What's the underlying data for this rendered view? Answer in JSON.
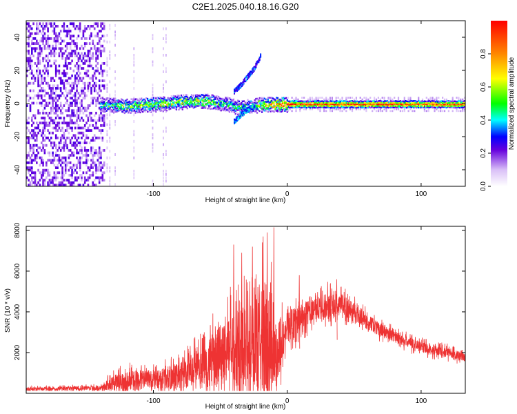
{
  "figure_title": "C2E1.2025.040.18.16.G20",
  "chart_data": [
    {
      "type": "heatmap",
      "title": "C2E1.2025.040.18.16.G20",
      "xlabel": "Height of straight line (km)",
      "ylabel": "Frequency (Hz)",
      "xlim": [
        -195,
        133
      ],
      "ylim": [
        -50,
        50
      ],
      "x_ticks": [
        -100,
        0,
        100
      ],
      "x_tick_labels": [
        "-100",
        "0",
        "100"
      ],
      "y_ticks": [
        -40,
        -20,
        0,
        20,
        40
      ],
      "y_tick_labels": [
        "-40",
        "-20",
        "0",
        "20",
        "40"
      ],
      "grid": false,
      "colorbar": {
        "label": "Normalized spectral amplitude",
        "range": [
          0,
          1
        ],
        "ticks": [
          0.0,
          0.2,
          0.4,
          0.6,
          0.8
        ],
        "tick_labels": [
          "0.0",
          "0.2",
          "0.4",
          "0.6",
          "0.8"
        ],
        "stops": [
          {
            "v": 0.0,
            "color": "#ffffff"
          },
          {
            "v": 0.1,
            "color": "#d9bff7"
          },
          {
            "v": 0.22,
            "color": "#6600dd"
          },
          {
            "v": 0.3,
            "color": "#0000ff"
          },
          {
            "v": 0.4,
            "color": "#00ffff"
          },
          {
            "v": 0.5,
            "color": "#00ff00"
          },
          {
            "v": 0.65,
            "color": "#ffff00"
          },
          {
            "v": 0.8,
            "color": "#ff8800"
          },
          {
            "v": 1.0,
            "color": "#ff0000"
          }
        ]
      },
      "features": [
        {
          "name": "noise region",
          "x_range": [
            -195,
            -137
          ],
          "f_range": [
            -50,
            50
          ],
          "amplitude": 0.2
        },
        {
          "name": "main trace",
          "points": [
            [
              -140,
              0
            ],
            [
              -120,
              -1
            ],
            [
              -100,
              0
            ],
            [
              -80,
              1.5
            ],
            [
              -60,
              2
            ],
            [
              -45,
              0
            ],
            [
              -35,
              -2
            ],
            [
              -20,
              0
            ],
            [
              -10,
              0
            ],
            [
              0,
              0
            ],
            [
              130,
              0
            ]
          ],
          "amplitude": [
            0.45,
            0.55,
            0.6,
            0.65,
            0.6,
            0.5,
            0.45,
            0.6,
            0.8,
            0.9,
            0.85
          ]
        },
        {
          "name": "rising branch",
          "points": [
            [
              -40,
              8
            ],
            [
              -35,
              12
            ],
            [
              -30,
              17
            ],
            [
              -25,
              22
            ],
            [
              -20,
              30
            ]
          ],
          "amplitude": 0.3
        },
        {
          "name": "descending branch",
          "points": [
            [
              -40,
              -10
            ],
            [
              -35,
              -6
            ],
            [
              -30,
              -3
            ],
            [
              -25,
              -1
            ]
          ],
          "amplitude": 0.35
        }
      ]
    },
    {
      "type": "line",
      "xlabel": "Height of straight line (km)",
      "ylabel": "SNR (10 * v/v)",
      "xlim": [
        -195,
        133
      ],
      "ylim": [
        0,
        8200
      ],
      "x_ticks": [
        -100,
        0,
        100
      ],
      "x_tick_labels": [
        "-100",
        "0",
        "100"
      ],
      "y_ticks": [
        2000,
        4000,
        6000,
        8000
      ],
      "y_tick_labels": [
        "2000",
        "4000",
        "6000",
        "8000"
      ],
      "grid": false,
      "color": "#ee3333",
      "envelope": {
        "x": [
          -195,
          -160,
          -140,
          -130,
          -120,
          -110,
          -100,
          -90,
          -80,
          -70,
          -60,
          -50,
          -45,
          -40,
          -35,
          -30,
          -25,
          -20,
          -15,
          -12,
          -10,
          -5,
          0,
          10,
          20,
          30,
          40,
          50,
          60,
          70,
          80,
          90,
          100,
          110,
          120,
          133
        ],
        "mean": [
          200,
          250,
          260,
          500,
          600,
          650,
          650,
          750,
          900,
          1100,
          1300,
          1900,
          2100,
          2200,
          2600,
          2200,
          2500,
          2800,
          2600,
          2600,
          1500,
          2500,
          3200,
          3700,
          4100,
          4300,
          4400,
          4000,
          3500,
          3100,
          2800,
          2500,
          2300,
          2100,
          2000,
          1750
        ],
        "spread": [
          150,
          180,
          200,
          700,
          900,
          900,
          800,
          1000,
          1300,
          1600,
          2000,
          2800,
          3000,
          3200,
          4500,
          3500,
          3800,
          5000,
          5500,
          5600,
          2000,
          2600,
          1500,
          1200,
          1000,
          1200,
          1000,
          800,
          700,
          600,
          550,
          500,
          500,
          450,
          450,
          400
        ]
      },
      "peaks": [
        [
          -40,
          7300
        ],
        [
          -34,
          6900
        ],
        [
          -26,
          7200
        ],
        [
          -18,
          7700
        ],
        [
          -15,
          7900
        ],
        [
          -10,
          8150
        ],
        [
          9,
          5800
        ],
        [
          37,
          5600
        ],
        [
          -62,
          3000
        ]
      ]
    }
  ]
}
